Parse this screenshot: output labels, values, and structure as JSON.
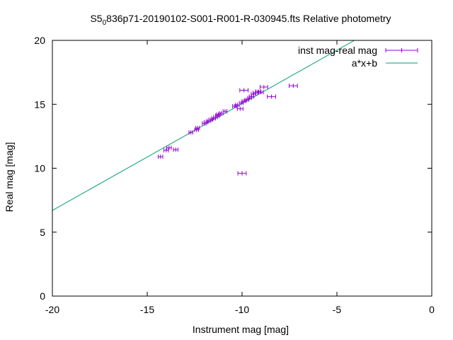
{
  "chart_data": {
    "type": "scatter",
    "title": {
      "prefix": "S5",
      "subscript": "0",
      "rest": "836p71-20190102-S001-R001-R-030945.fts Relative photometry"
    },
    "xlabel": "Instrument mag [mag]",
    "ylabel": "Real mag [mag]",
    "xlim": [
      -20,
      0
    ],
    "ylim": [
      0,
      20
    ],
    "xticks": [
      -20,
      -15,
      -10,
      -5,
      0
    ],
    "xtick_labels": [
      "-20",
      "-15",
      "-10",
      "-5",
      "0"
    ],
    "yticks": [
      0,
      5,
      10,
      15,
      20
    ],
    "ytick_labels": [
      "0",
      "5",
      "10",
      "15",
      "20"
    ],
    "grid": false,
    "legend_position": "top-right",
    "series": [
      {
        "name": "inst mag-real mag",
        "kind": "errorbars",
        "color": "#9400d3",
        "points": [
          {
            "x": -14.3,
            "y": 10.9,
            "xerr": 0.12
          },
          {
            "x": -14.0,
            "y": 11.4,
            "xerr": 0.12
          },
          {
            "x": -13.85,
            "y": 11.6,
            "xerr": 0.12
          },
          {
            "x": -13.5,
            "y": 11.45,
            "xerr": 0.12
          },
          {
            "x": -12.7,
            "y": 12.8,
            "xerr": 0.1
          },
          {
            "x": -12.4,
            "y": 13.0,
            "xerr": 0.1
          },
          {
            "x": -12.35,
            "y": 13.15,
            "xerr": 0.1
          },
          {
            "x": -12.0,
            "y": 13.5,
            "xerr": 0.1
          },
          {
            "x": -11.9,
            "y": 13.6,
            "xerr": 0.1
          },
          {
            "x": -11.75,
            "y": 13.7,
            "xerr": 0.1
          },
          {
            "x": -11.65,
            "y": 13.8,
            "xerr": 0.1
          },
          {
            "x": -11.5,
            "y": 13.9,
            "xerr": 0.1
          },
          {
            "x": -11.4,
            "y": 14.0,
            "xerr": 0.1
          },
          {
            "x": -11.3,
            "y": 14.1,
            "xerr": 0.1
          },
          {
            "x": -11.25,
            "y": 14.2,
            "xerr": 0.1
          },
          {
            "x": -11.1,
            "y": 14.3,
            "xerr": 0.1
          },
          {
            "x": -10.9,
            "y": 14.45,
            "xerr": 0.1
          },
          {
            "x": -10.4,
            "y": 14.85,
            "xerr": 0.1
          },
          {
            "x": -10.25,
            "y": 14.95,
            "xerr": 0.1
          },
          {
            "x": -10.1,
            "y": 14.65,
            "xerr": 0.15
          },
          {
            "x": -10.05,
            "y": 15.1,
            "xerr": 0.1
          },
          {
            "x": -9.9,
            "y": 15.25,
            "xerr": 0.1
          },
          {
            "x": -9.75,
            "y": 15.35,
            "xerr": 0.1
          },
          {
            "x": -9.6,
            "y": 15.5,
            "xerr": 0.1
          },
          {
            "x": -9.5,
            "y": 15.6,
            "xerr": 0.12
          },
          {
            "x": -9.4,
            "y": 15.8,
            "xerr": 0.12
          },
          {
            "x": -9.3,
            "y": 15.9,
            "xerr": 0.12
          },
          {
            "x": -9.15,
            "y": 16.0,
            "xerr": 0.12
          },
          {
            "x": -9.0,
            "y": 15.95,
            "xerr": 0.12
          },
          {
            "x": -9.9,
            "y": 16.1,
            "xerr": 0.22
          },
          {
            "x": -8.85,
            "y": 16.35,
            "xerr": 0.2
          },
          {
            "x": -8.45,
            "y": 15.6,
            "xerr": 0.22
          },
          {
            "x": -7.3,
            "y": 16.45,
            "xerr": 0.22
          },
          {
            "x": -10.0,
            "y": 9.6,
            "xerr": 0.22
          }
        ]
      },
      {
        "name": "a*x+b",
        "kind": "line",
        "color": "#009e73",
        "x": [
          -20,
          -4.08
        ],
        "y": [
          6.7,
          20
        ]
      }
    ]
  }
}
